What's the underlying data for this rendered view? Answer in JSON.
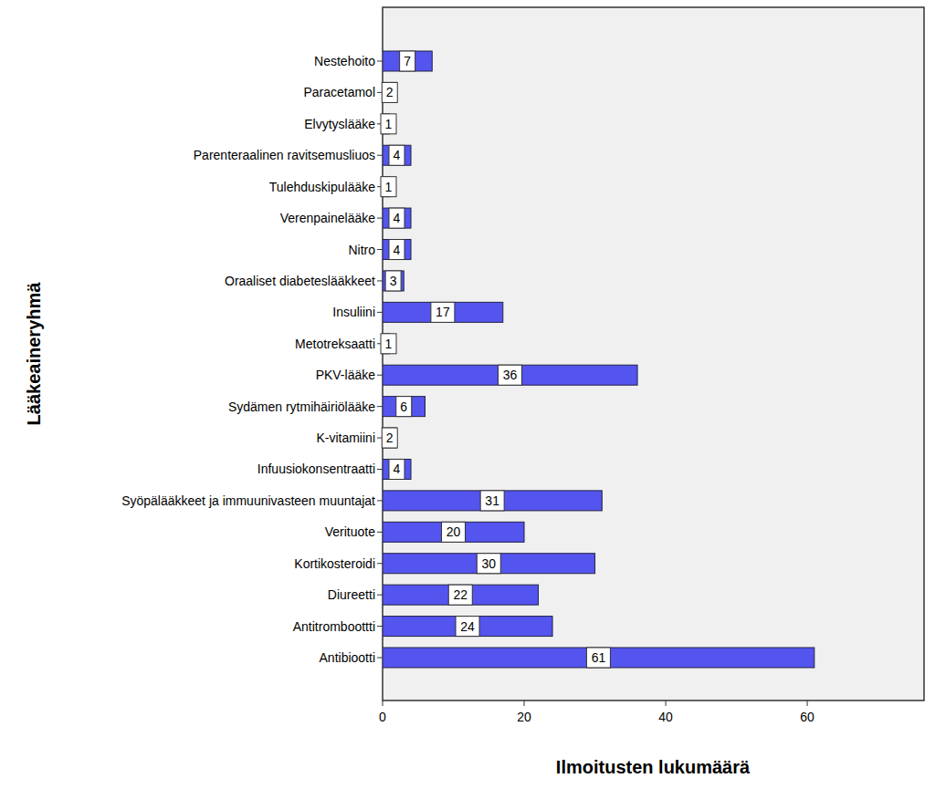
{
  "chart_data": {
    "type": "bar",
    "orientation": "horizontal",
    "x_label": "Ilmoitusten lukumäärä",
    "y_label": "Lääkeaineryhmä",
    "categories": [
      "Nestehoito",
      "Paracetamol",
      "Elvytyslääke",
      "Parenteraalinen ravitsemusliuos",
      "Tulehduskipulääke",
      "Verenpainelääke",
      "Nitro",
      "Oraaliset diabeteslääkkeet",
      "Insuliini",
      "Metotreksaatti",
      "PKV-lääke",
      "Sydämen rytmihäiriölääke",
      "K-vitamiini",
      "Infuusiokonsentraatti",
      "Syöpälääkkeet ja immuunivasteen muuntajat",
      "Verituote",
      "Kortikosteroidi",
      "Diureetti",
      "Antitromboottti",
      "Antibiootti"
    ],
    "values": [
      7,
      2,
      1,
      4,
      1,
      4,
      4,
      3,
      17,
      1,
      36,
      6,
      2,
      4,
      31,
      20,
      30,
      22,
      24,
      61
    ],
    "color": "#5454ee",
    "xlim": [
      0,
      76.5
    ],
    "xticks": [
      0,
      20,
      40,
      60
    ],
    "grid": false,
    "data_labels": true
  }
}
